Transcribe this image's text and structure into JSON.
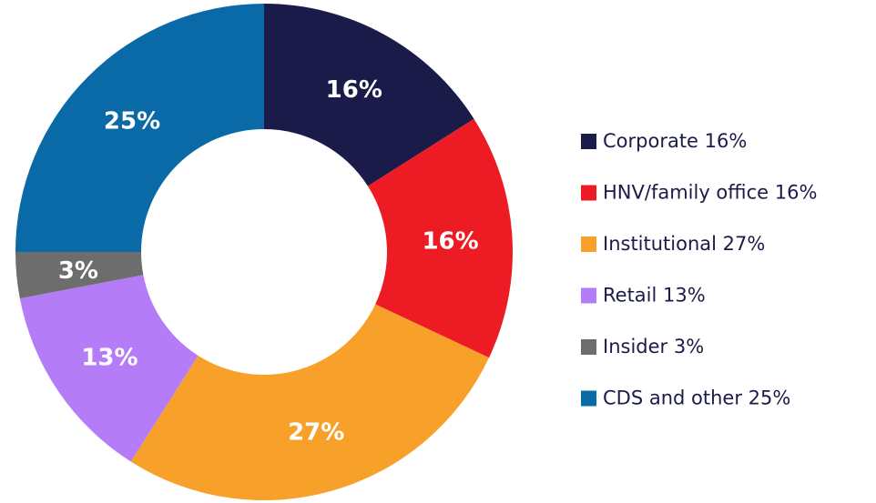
{
  "chart_data": {
    "type": "pie",
    "categories": [
      "Corporate 16%",
      "HNV/family office 16%",
      "Institutional 27%",
      "Retail 13%",
      "Insider 3%",
      "CDS and other 25%"
    ],
    "values": [
      16,
      16,
      27,
      13,
      3,
      25
    ],
    "value_labels": [
      "16%",
      "16%",
      "27%",
      "13%",
      "3%",
      "25%"
    ],
    "colors": [
      "#1b1b4a",
      "#ed1c24",
      "#f7a12b",
      "#b57cf7",
      "#6d6d6d",
      "#0a6aa8"
    ],
    "legend": "right"
  }
}
